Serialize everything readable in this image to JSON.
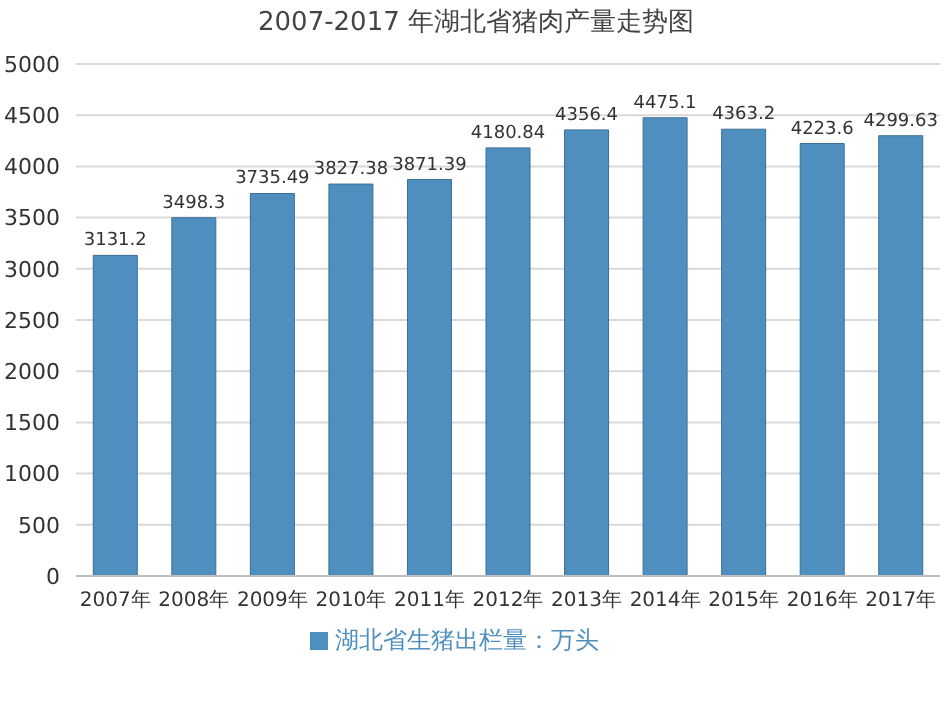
{
  "chart_data": {
    "type": "bar",
    "title": "2007-2017 年湖北省猪肉产量走势图",
    "categories": [
      "2007年",
      "2008年",
      "2009年",
      "2010年",
      "2011年",
      "2012年",
      "2013年",
      "2014年",
      "2015年",
      "2016年",
      "2017年"
    ],
    "series": [
      {
        "name": "湖北省生猪出栏量：万头",
        "color": "#4f8fbf",
        "values": [
          3131.2,
          3498.3,
          3735.49,
          3827.38,
          3871.39,
          4180.84,
          4356.4,
          4475.1,
          4363.2,
          4223.6,
          4299.63
        ]
      }
    ],
    "ylim": [
      0,
      5000
    ],
    "yticks": [
      0,
      500,
      1000,
      1500,
      2000,
      2500,
      3000,
      3500,
      4000,
      4500,
      5000
    ],
    "grid": "y",
    "legend": "bottom",
    "data_labels": true
  }
}
